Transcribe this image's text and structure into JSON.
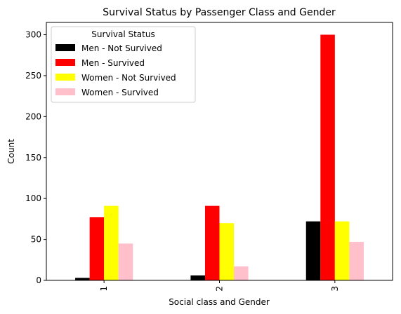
{
  "chart_data": {
    "type": "bar",
    "title": "Survival Status by Passenger Class and Gender",
    "xlabel": "Social class and Gender",
    "ylabel": "Count",
    "categories": [
      "1",
      "2",
      "3"
    ],
    "ylim": [
      0,
      315
    ],
    "yticks": [
      0,
      50,
      100,
      150,
      200,
      250,
      300
    ],
    "grid": false,
    "legend": {
      "title": "Survival Status",
      "placement": "top-left"
    },
    "series": [
      {
        "name": "Men - Not Survived",
        "color": "#000000",
        "values": [
          3,
          6,
          72
        ]
      },
      {
        "name": "Men - Survived",
        "color": "#ff0000",
        "values": [
          77,
          91,
          300
        ]
      },
      {
        "name": "Women - Not Survived",
        "color": "#ffff00",
        "values": [
          91,
          70,
          72
        ]
      },
      {
        "name": "Women - Survived",
        "color": "#ffc0cb",
        "values": [
          45,
          17,
          47
        ]
      }
    ]
  }
}
